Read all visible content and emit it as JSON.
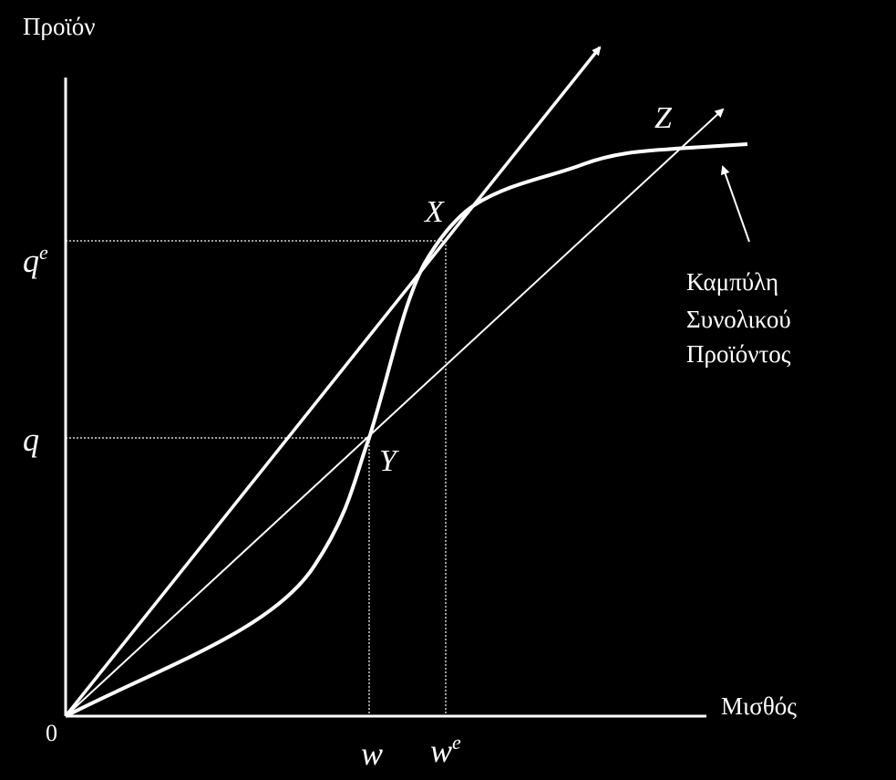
{
  "diagram": {
    "y_axis_label": "Προϊόν",
    "x_axis_label": "Μισθός",
    "origin_label": "0",
    "y_ticks": {
      "qe_base": "q",
      "qe_sup": "e",
      "q": "q"
    },
    "x_ticks": {
      "w": "w",
      "we_base": "w",
      "we_sup": "e"
    },
    "points": {
      "X": "X",
      "Y": "Y",
      "Z": "Z"
    },
    "curve_label": [
      "Καμπύλη",
      "Συνολικού",
      "Προϊόντος"
    ],
    "colors": {
      "background": "#000000",
      "foreground": "#ffffff"
    }
  }
}
